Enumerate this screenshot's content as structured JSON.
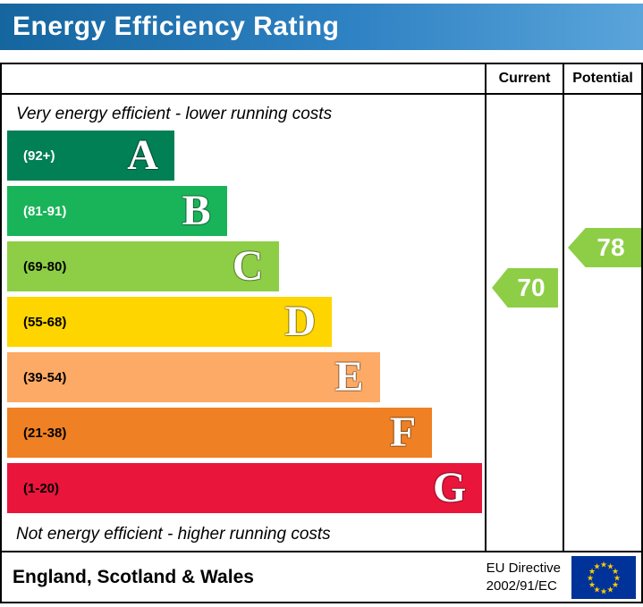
{
  "header": {
    "title": "Energy Efficiency Rating"
  },
  "columns": {
    "current": "Current",
    "potential": "Potential"
  },
  "chart_data": {
    "type": "bar",
    "title": "Energy Efficiency Rating",
    "top_note": "Very energy efficient - lower running costs",
    "bottom_note": "Not energy efficient - higher running costs",
    "bands": [
      {
        "letter": "A",
        "range": "(92+)",
        "color": "#008054",
        "label_color": "#ffffff",
        "width_pct": 35
      },
      {
        "letter": "B",
        "range": "(81-91)",
        "color": "#19b459",
        "label_color": "#ffffff",
        "width_pct": 46
      },
      {
        "letter": "C",
        "range": "(69-80)",
        "color": "#8dce46",
        "label_color": "#000000",
        "width_pct": 57
      },
      {
        "letter": "D",
        "range": "(55-68)",
        "color": "#ffd500",
        "label_color": "#000000",
        "width_pct": 68
      },
      {
        "letter": "E",
        "range": "(39-54)",
        "color": "#fcaa65",
        "label_color": "#000000",
        "width_pct": 78
      },
      {
        "letter": "F",
        "range": "(21-38)",
        "color": "#ef8023",
        "label_color": "#000000",
        "width_pct": 89
      },
      {
        "letter": "G",
        "range": "(1-20)",
        "color": "#e9153b",
        "label_color": "#000000",
        "width_pct": 99.5
      }
    ],
    "current": {
      "value": 70,
      "band": "C",
      "color": "#8dce46"
    },
    "potential": {
      "value": 78,
      "band": "C",
      "color": "#8dce46"
    }
  },
  "footer": {
    "region": "England, Scotland & Wales",
    "directive_line1": "EU Directive",
    "directive_line2": "2002/91/EC"
  }
}
